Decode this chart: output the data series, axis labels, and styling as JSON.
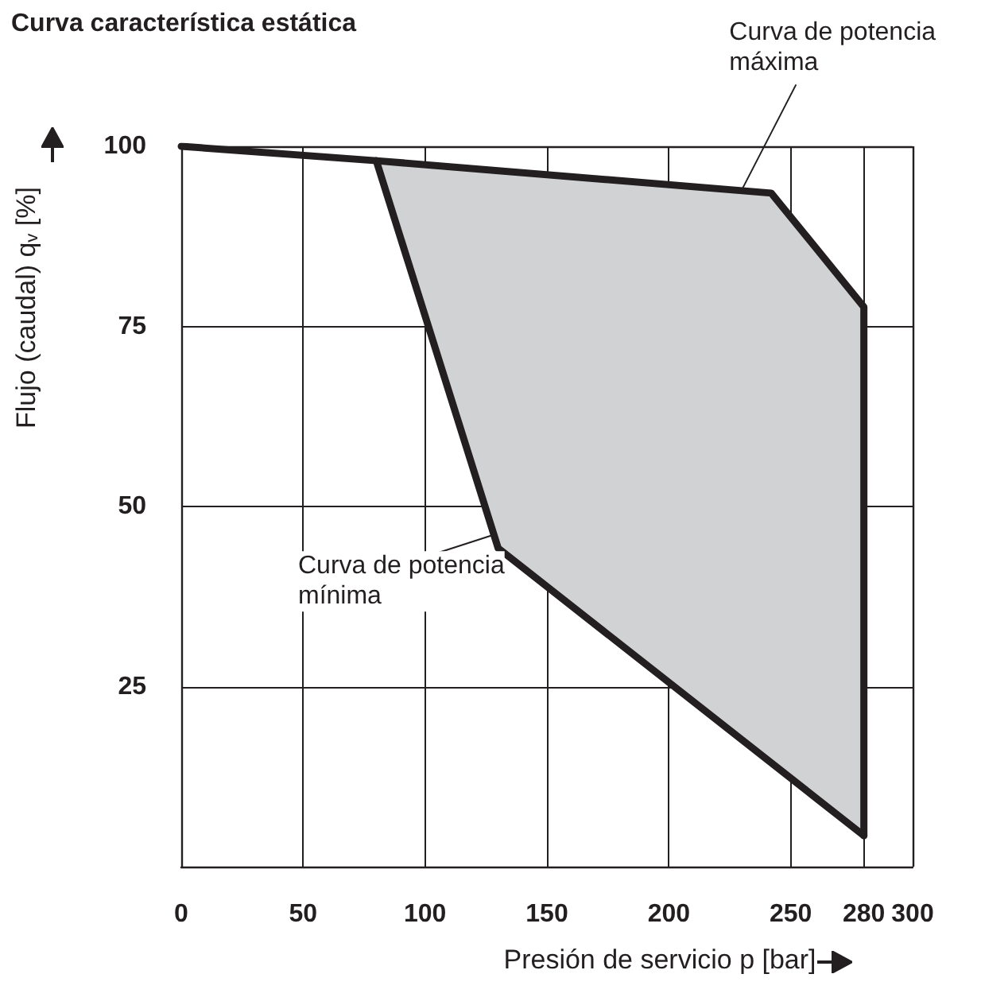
{
  "chart_data": {
    "type": "line",
    "title": "Curva característica estática",
    "xlabel": "Presión de servicio p [bar]",
    "ylabel": "Flujo (caudal) q$_{v}$ [%]",
    "series": [
      {
        "color": "#231f20",
        "x": [
          0,
          80,
          242,
          280,
          280
        ],
        "values": [
          100,
          98,
          93.5,
          77.7,
          4.3
        ]
      },
      {
        "color": "#231f20",
        "x": [
          80,
          130,
          280
        ],
        "values": [
          98,
          44.2,
          4.3
        ]
      }
    ],
    "annotations": [
      {
        "text": "Curva de potencia\nmáxima",
        "x": 230,
        "y": 94
      },
      {
        "text": "Curva de potencia\nmínima",
        "x": 127.5,
        "y": 46
      }
    ],
    "xlim": [
      0,
      300
    ],
    "xticks": [
      0,
      50,
      100,
      150,
      200,
      250,
      280,
      300
    ],
    "ylim": [
      0,
      100
    ],
    "yticks": [
      25,
      50,
      75,
      100
    ],
    "grid": true,
    "marker": "none",
    "line_style": "solid"
  }
}
